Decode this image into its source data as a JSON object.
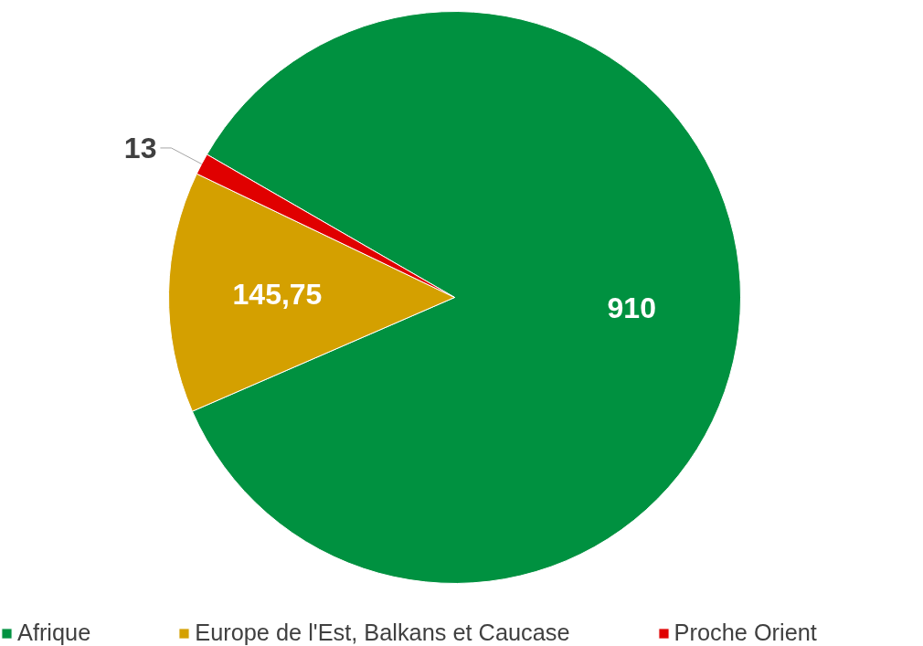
{
  "chart_data": {
    "type": "pie",
    "categories": [
      "Afrique",
      "Europe de l'Est, Balkans et Caucase",
      "Proche Orient"
    ],
    "values": [
      910,
      145.75,
      13
    ],
    "value_labels": [
      "910",
      "145,75",
      "13"
    ],
    "colors": [
      "#009140",
      "#d4a000",
      "#e00000"
    ],
    "legend": "bottom"
  }
}
